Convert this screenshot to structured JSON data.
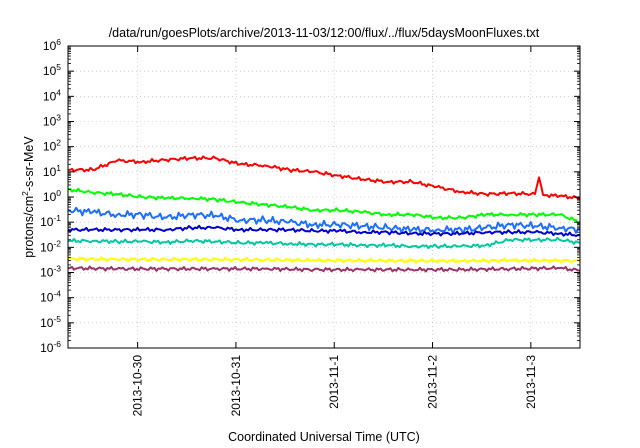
{
  "chart_data": {
    "type": "line",
    "title": "/data/run/goesPlots/archive/2013-11-03/12:00/flux/../flux/5daysMoonFluxes.txt",
    "xlabel": "Coordinated Universal Time (UTC)",
    "ylabel": {
      "prefix": "protons/cm",
      "superscript": "2",
      "suffix": "-s-sr-MeV"
    },
    "yscale": "log",
    "ylim": [
      1e-06,
      1000000.0
    ],
    "y_ticks": [
      {
        "mantissa": "10",
        "exp": "6",
        "value": 1000000.0
      },
      {
        "mantissa": "10",
        "exp": "5",
        "value": 100000.0
      },
      {
        "mantissa": "10",
        "exp": "4",
        "value": 10000.0
      },
      {
        "mantissa": "10",
        "exp": "3",
        "value": 1000.0
      },
      {
        "mantissa": "10",
        "exp": "2",
        "value": 100.0
      },
      {
        "mantissa": "10",
        "exp": "1",
        "value": 10.0
      },
      {
        "mantissa": "10",
        "exp": "0",
        "value": 1.0
      },
      {
        "mantissa": "10",
        "exp": "-1",
        "value": 0.1
      },
      {
        "mantissa": "10",
        "exp": "-2",
        "value": 0.01
      },
      {
        "mantissa": "10",
        "exp": "-3",
        "value": 0.001
      },
      {
        "mantissa": "10",
        "exp": "-4",
        "value": 0.0001
      },
      {
        "mantissa": "10",
        "exp": "-5",
        "value": 1e-05
      },
      {
        "mantissa": "10",
        "exp": "-6",
        "value": 1e-06
      }
    ],
    "xlim": [
      "2013-10-29 07:00",
      "2013-11-03 12:00"
    ],
    "x_ticks": [
      "2013-10-30",
      "2013-10-31",
      "2013-11-1",
      "2013-11-2",
      "2013-11-3"
    ],
    "x_tick_values": [
      "2013-10-30 00:00",
      "2013-10-31 00:00",
      "2013-11-01 00:00",
      "2013-11-02 00:00",
      "2013-11-03 00:00"
    ],
    "grid": true,
    "legend": false,
    "series": [
      {
        "color": "#ff0000",
        "x": [
          "2013-10-29 07:00",
          "2013-10-29 13:00",
          "2013-10-29 19:00",
          "2013-10-30 01:00",
          "2013-10-30 07:00",
          "2013-10-30 13:00",
          "2013-10-30 19:00",
          "2013-10-31 01:00",
          "2013-10-31 07:00",
          "2013-10-31 13:00",
          "2013-10-31 19:00",
          "2013-11-01 01:00",
          "2013-11-01 07:00",
          "2013-11-01 13:00",
          "2013-11-01 19:00",
          "2013-11-02 01:00",
          "2013-11-02 07:00",
          "2013-11-02 13:00",
          "2013-11-02 19:00",
          "2013-11-03 01:00",
          "2013-11-03 02:00",
          "2013-11-03 03:00",
          "2013-11-03 07:00",
          "2013-11-03 12:00"
        ],
        "y": [
          12,
          12,
          28,
          25,
          30,
          35,
          35,
          20,
          18,
          12,
          10,
          7,
          5,
          4,
          4,
          2.5,
          1.6,
          1.3,
          1.4,
          1.3,
          6,
          1.2,
          1.1,
          0.9
        ]
      },
      {
        "color": "#00ff00",
        "x": [
          "2013-10-29 07:00",
          "2013-10-29 13:00",
          "2013-10-29 19:00",
          "2013-10-30 01:00",
          "2013-10-30 07:00",
          "2013-10-30 13:00",
          "2013-10-30 19:00",
          "2013-10-31 01:00",
          "2013-10-31 07:00",
          "2013-10-31 13:00",
          "2013-10-31 19:00",
          "2013-11-01 01:00",
          "2013-11-01 07:00",
          "2013-11-01 13:00",
          "2013-11-01 19:00",
          "2013-11-02 01:00",
          "2013-11-02 07:00",
          "2013-11-02 13:00",
          "2013-11-02 19:00",
          "2013-11-03 01:00",
          "2013-11-03 07:00",
          "2013-11-03 12:00"
        ],
        "y": [
          2,
          1.5,
          1.3,
          1.0,
          0.9,
          0.9,
          0.8,
          0.6,
          0.5,
          0.4,
          0.3,
          0.3,
          0.25,
          0.2,
          0.2,
          0.15,
          0.15,
          0.2,
          0.2,
          0.2,
          0.2,
          0.1
        ]
      },
      {
        "color": "#1e6fff",
        "x": [
          "2013-10-29 07:00",
          "2013-10-29 13:00",
          "2013-10-29 19:00",
          "2013-10-30 01:00",
          "2013-10-30 07:00",
          "2013-10-30 13:00",
          "2013-10-30 19:00",
          "2013-10-31 01:00",
          "2013-10-31 07:00",
          "2013-10-31 13:00",
          "2013-10-31 19:00",
          "2013-11-01 01:00",
          "2013-11-01 07:00",
          "2013-11-01 13:00",
          "2013-11-01 19:00",
          "2013-11-02 01:00",
          "2013-11-02 07:00",
          "2013-11-02 13:00",
          "2013-11-02 19:00",
          "2013-11-03 01:00",
          "2013-11-03 07:00",
          "2013-11-03 12:00"
        ],
        "y": [
          0.3,
          0.25,
          0.2,
          0.2,
          0.15,
          0.2,
          0.18,
          0.12,
          0.12,
          0.1,
          0.08,
          0.08,
          0.07,
          0.06,
          0.05,
          0.05,
          0.05,
          0.06,
          0.08,
          0.07,
          0.06,
          0.05
        ]
      },
      {
        "color": "#0000cd",
        "x": [
          "2013-10-29 07:00",
          "2013-10-29 13:00",
          "2013-10-29 19:00",
          "2013-10-30 01:00",
          "2013-10-30 07:00",
          "2013-10-30 13:00",
          "2013-10-30 19:00",
          "2013-10-31 01:00",
          "2013-10-31 07:00",
          "2013-10-31 13:00",
          "2013-10-31 19:00",
          "2013-11-01 01:00",
          "2013-11-01 07:00",
          "2013-11-01 13:00",
          "2013-11-01 19:00",
          "2013-11-02 01:00",
          "2013-11-02 07:00",
          "2013-11-02 13:00",
          "2013-11-02 19:00",
          "2013-11-03 01:00",
          "2013-11-03 07:00",
          "2013-11-03 12:00"
        ],
        "y": [
          0.05,
          0.05,
          0.05,
          0.05,
          0.05,
          0.06,
          0.06,
          0.05,
          0.05,
          0.05,
          0.045,
          0.045,
          0.04,
          0.04,
          0.035,
          0.035,
          0.035,
          0.04,
          0.04,
          0.04,
          0.035,
          0.03
        ]
      },
      {
        "color": "#00c8a0",
        "x": [
          "2013-10-29 07:00",
          "2013-10-29 13:00",
          "2013-10-29 19:00",
          "2013-10-30 01:00",
          "2013-10-30 07:00",
          "2013-10-30 13:00",
          "2013-10-30 19:00",
          "2013-10-31 01:00",
          "2013-10-31 07:00",
          "2013-10-31 13:00",
          "2013-10-31 19:00",
          "2013-11-01 01:00",
          "2013-11-01 07:00",
          "2013-11-01 13:00",
          "2013-11-01 19:00",
          "2013-11-02 01:00",
          "2013-11-02 07:00",
          "2013-11-02 13:00",
          "2013-11-02 19:00",
          "2013-11-03 01:00",
          "2013-11-03 07:00",
          "2013-11-03 12:00"
        ],
        "y": [
          0.018,
          0.018,
          0.017,
          0.017,
          0.016,
          0.018,
          0.017,
          0.015,
          0.015,
          0.014,
          0.013,
          0.013,
          0.012,
          0.012,
          0.011,
          0.011,
          0.011,
          0.012,
          0.02,
          0.02,
          0.02,
          0.015
        ]
      },
      {
        "color": "#ffff00",
        "x": [
          "2013-10-29 07:00",
          "2013-10-29 19:00",
          "2013-10-30 07:00",
          "2013-10-30 19:00",
          "2013-10-31 07:00",
          "2013-10-31 19:00",
          "2013-11-01 07:00",
          "2013-11-01 19:00",
          "2013-11-02 07:00",
          "2013-11-02 19:00",
          "2013-11-03 07:00",
          "2013-11-03 12:00"
        ],
        "y": [
          0.0035,
          0.0033,
          0.0033,
          0.0033,
          0.0032,
          0.003,
          0.003,
          0.0029,
          0.0029,
          0.003,
          0.003,
          0.0028
        ]
      },
      {
        "color": "#993366",
        "x": [
          "2013-10-29 07:00",
          "2013-10-29 19:00",
          "2013-10-30 07:00",
          "2013-10-30 19:00",
          "2013-10-31 07:00",
          "2013-10-31 19:00",
          "2013-11-01 07:00",
          "2013-11-01 19:00",
          "2013-11-02 07:00",
          "2013-11-02 19:00",
          "2013-11-03 07:00",
          "2013-11-03 12:00"
        ],
        "y": [
          0.0015,
          0.0014,
          0.0014,
          0.0014,
          0.0014,
          0.0013,
          0.0013,
          0.0013,
          0.0013,
          0.0014,
          0.0015,
          0.0012
        ]
      }
    ]
  }
}
